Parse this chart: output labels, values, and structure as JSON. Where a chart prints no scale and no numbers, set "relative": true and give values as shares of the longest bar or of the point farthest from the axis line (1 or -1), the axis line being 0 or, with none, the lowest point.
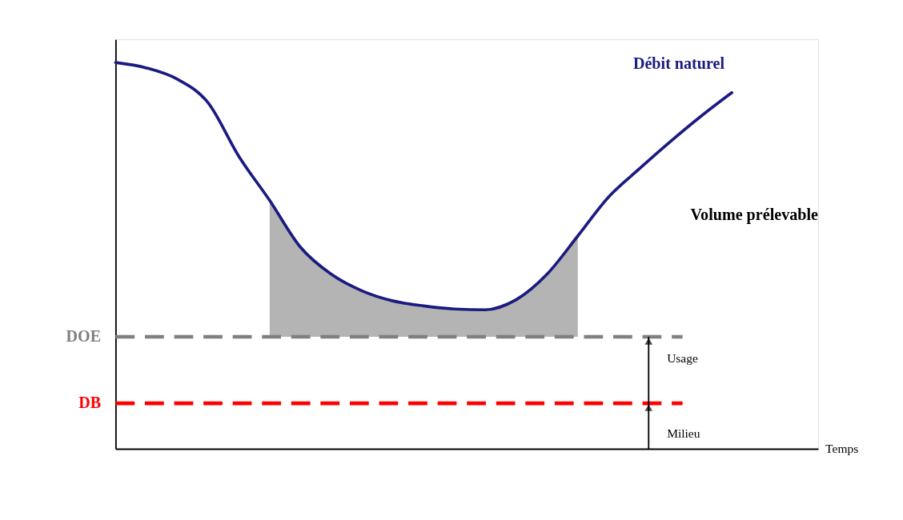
{
  "chart_data": {
    "type": "line",
    "relative": true,
    "grid": false,
    "categories": [
      null,
      null,
      null,
      null,
      null,
      null,
      null,
      null,
      null,
      null,
      null,
      null,
      null,
      null,
      null,
      null,
      null,
      null,
      null,
      null,
      null
    ],
    "series": [
      {
        "color": "#1a1a80",
        "values": [
          1.0,
          0.986,
          0.957,
          0.896,
          0.757,
          0.643,
          0.522,
          0.452,
          0.409,
          0.383,
          0.37,
          0.362,
          0.36,
          0.386,
          0.452,
          0.551,
          0.652,
          0.725,
          0.795,
          0.861,
          0.922
        ],
        "lower": [
          null,
          null,
          null,
          null,
          null,
          0.29,
          0.29,
          0.29,
          0.29,
          0.29,
          0.29,
          0.29,
          0.29,
          0.29,
          0.29,
          0.29,
          null,
          null,
          null,
          null,
          null
        ],
        "upper": [
          null,
          null,
          null,
          null,
          null,
          0.643,
          0.522,
          0.452,
          0.409,
          0.383,
          0.37,
          0.362,
          0.36,
          0.386,
          0.452,
          0.551,
          null,
          null,
          null,
          null,
          null
        ]
      }
    ],
    "ref_lines": [
      {
        "axis": "y",
        "value": 0.29,
        "label": "DOE",
        "color": "#808080",
        "line_style": "dashed"
      },
      {
        "axis": "y",
        "value": 0.118,
        "label": "DB",
        "color": "#ff0000",
        "line_style": "dashed"
      }
    ],
    "annotations": [
      "Débit naturel",
      "Volume prélevable",
      "Usage",
      "Milieu",
      "Temps"
    ]
  }
}
